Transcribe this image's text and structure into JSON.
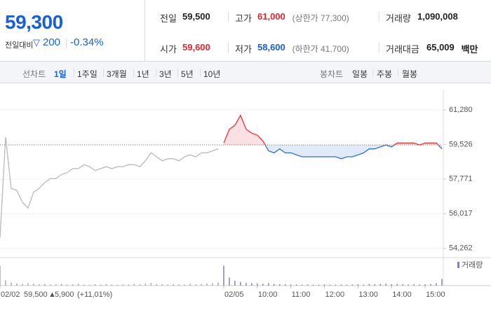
{
  "header": {
    "price": "59,300",
    "change_label": "전일대비",
    "change": "200",
    "change_rate": "-0.34%",
    "stats": [
      {
        "label": "전일",
        "value": "59,500",
        "color": "#222"
      },
      {
        "label": "고가",
        "value": "61,000",
        "note": "(상한가 77,300)",
        "color": "#e0262f"
      },
      {
        "label": "거래량",
        "value": "1,090,008",
        "color": "#222"
      },
      {
        "label": "시가",
        "value": "59,600",
        "color": "#e0262f"
      },
      {
        "label": "저가",
        "value": "58,600",
        "note": "(하한가 41,700)",
        "color": "#1a5fd6"
      },
      {
        "label": "거래대금",
        "value": "65,009",
        "unit": "백만",
        "color": "#222"
      }
    ]
  },
  "tabs": {
    "line_label": "선차트",
    "line_periods": [
      "1일",
      "1주일",
      "3개월",
      "1년",
      "3년",
      "5년",
      "10년"
    ],
    "candle_label": "봉차트",
    "candle_periods": [
      "일봉",
      "주봉",
      "월봉"
    ]
  },
  "summary": {
    "date": "02/02",
    "close": "59,500",
    "change": "5,900",
    "rate": "(+11,01%)"
  },
  "chart_data": {
    "type": "line",
    "categories": [
      "02/02",
      null,
      null,
      null,
      null,
      null,
      null,
      null,
      null,
      null,
      null,
      null,
      null,
      null,
      null,
      null,
      null,
      null,
      null,
      null,
      null,
      null,
      null,
      null,
      null,
      null,
      null,
      null,
      null,
      null,
      null,
      null,
      null,
      null,
      null,
      null,
      null,
      null,
      null,
      null,
      "02/05",
      null,
      null,
      null,
      null,
      null,
      "10:00",
      null,
      null,
      null,
      null,
      null,
      "11:00",
      null,
      null,
      null,
      null,
      null,
      "12:00",
      null,
      null,
      null,
      null,
      null,
      "13:00",
      null,
      null,
      null,
      null,
      null,
      "14:00",
      null,
      null,
      null,
      null,
      null,
      "15:00",
      null,
      null,
      null
    ],
    "series": [
      {
        "color": "#b8b8b8",
        "values": [
          54800,
          59900,
          57300,
          57200,
          56600,
          56300,
          57100,
          57300,
          57600,
          57800,
          57800,
          58000,
          58100,
          58300,
          58300,
          58500,
          58400,
          58200,
          58300,
          58400,
          58300,
          58400,
          58400,
          58500,
          58500,
          58400,
          58700,
          59100,
          58900,
          58700,
          58800,
          58800,
          58700,
          58900,
          59000,
          58900,
          59100,
          59100,
          59200,
          59300,
          null,
          null,
          null,
          null,
          null,
          null,
          null,
          null,
          null,
          null,
          null,
          null,
          null,
          null,
          null,
          null,
          null,
          null,
          null,
          null,
          null,
          null,
          null,
          null,
          null,
          null,
          null,
          null,
          null,
          null,
          null,
          null,
          null,
          null,
          null,
          null,
          null,
          null,
          null,
          null
        ]
      },
      {
        "color": "#e8333b",
        "color_below": "#2f6fd0",
        "values": [
          null,
          null,
          null,
          null,
          null,
          null,
          null,
          null,
          null,
          null,
          null,
          null,
          null,
          null,
          null,
          null,
          null,
          null,
          null,
          null,
          null,
          null,
          null,
          null,
          null,
          null,
          null,
          null,
          null,
          null,
          null,
          null,
          null,
          null,
          null,
          null,
          null,
          null,
          null,
          null,
          59600,
          60300,
          60500,
          61000,
          60300,
          60100,
          60000,
          59700,
          59200,
          59100,
          59300,
          59100,
          59100,
          59000,
          58900,
          58900,
          58900,
          58900,
          58900,
          58900,
          58900,
          58800,
          58900,
          58900,
          59000,
          59100,
          59300,
          59300,
          59400,
          59500,
          59400,
          59600,
          59600,
          59600,
          59600,
          59500,
          59600,
          59600,
          59600,
          59300
        ]
      },
      {
        "name": "거래량",
        "type": "bar",
        "axis": "y2",
        "color": "#8a7fb5",
        "values": [
          75,
          20,
          12,
          8,
          6,
          9,
          7,
          5,
          6,
          4,
          5,
          6,
          4,
          5,
          7,
          4,
          3,
          5,
          4,
          6,
          4,
          3,
          5,
          4,
          6,
          5,
          8,
          10,
          6,
          5,
          4,
          6,
          5,
          4,
          7,
          5,
          6,
          8,
          9,
          12,
          75,
          30,
          18,
          14,
          10,
          9,
          8,
          7,
          9,
          6,
          5,
          5,
          4,
          4,
          3,
          4,
          3,
          3,
          4,
          3,
          3,
          4,
          3,
          4,
          5,
          4,
          6,
          5,
          6,
          7,
          5,
          6,
          5,
          4,
          5,
          4,
          5,
          6,
          9,
          25
        ]
      }
    ],
    "ylim": [
      53900,
      62340
    ],
    "yticks": [
      {
        "value": 54262,
        "label": "54,262"
      },
      {
        "value": 56017,
        "label": "56,017"
      },
      {
        "value": 57771,
        "label": "57,771"
      },
      {
        "value": 59526,
        "label": "59,526"
      },
      {
        "value": 61280,
        "label": "61,280"
      }
    ],
    "y2lim": [
      0,
      100
    ],
    "reference_line": 59500,
    "grid": true
  }
}
